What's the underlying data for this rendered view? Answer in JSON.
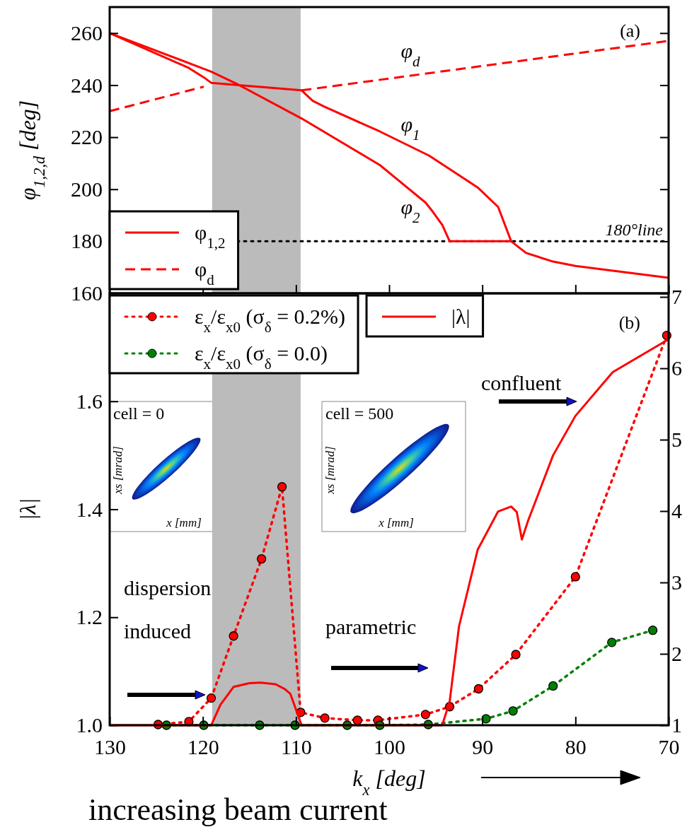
{
  "chart_data": [
    {
      "type": "line",
      "ylabel": "φ$_{1,2,d}$ [deg]",
      "xlim": [
        130,
        70
      ],
      "ylim": [
        160,
        270
      ],
      "xticks": [
        130,
        120,
        110,
        100,
        90,
        80,
        70
      ],
      "yticks": [
        160,
        180,
        200,
        220,
        240,
        260
      ],
      "tick_labels": "y",
      "legend": "bottom left",
      "series": [
        {
          "name": "φ$_{1,2}$",
          "color": "#ff0000",
          "line_style": "solid",
          "marker": "none",
          "x": [
            130,
            121.5,
            119.9,
            119.1,
            109.4,
            108.2,
            107,
            101,
            95.7,
            90.5,
            88.3,
            86.9,
            85.3,
            82.4,
            80,
            70
          ],
          "values": [
            260,
            246.6,
            243,
            240.9,
            238,
            234,
            231.8,
            222.2,
            212.9,
            200.7,
            193.2,
            180,
            175.5,
            172.2,
            170.5,
            166
          ]
        },
        {
          "color": "#ff0000",
          "line_style": "solid",
          "marker": "none",
          "x": [
            130,
            119.1,
            116.2,
            109.4,
            101,
            96.1,
            95.3,
            94.3,
            93.5,
            86.9
          ],
          "values": [
            260,
            245.2,
            240.2,
            227.2,
            209.3,
            194.9,
            191.3,
            186.3,
            180,
            180
          ]
        },
        {
          "name": "φ$_{d}$",
          "color": "#ff0000",
          "line_style": "dashed",
          "marker": "none",
          "x": [
            130,
            119.9,
            115,
            109.4,
            70
          ],
          "values": [
            230,
            239.4,
            null,
            238,
            257
          ]
        }
      ],
      "bands": [
        {
          "axis": "x",
          "from": 119,
          "to": 109.5,
          "color": "#bbbbbb"
        }
      ],
      "ref_lines": [
        {
          "axis": "y",
          "value": 180,
          "label": "180°line",
          "color": "#000000",
          "line_style": "dotted"
        }
      ],
      "annotations": [
        "(a)",
        "φ$_{d}$",
        "φ$_{1}$",
        "φ$_{2}$"
      ]
    },
    {
      "type": "line",
      "xlabel": "k$_{x}$ [deg]",
      "ylabel": "|λ|",
      "xlim": [
        130,
        70
      ],
      "ylim": [
        1.0,
        1.8
      ],
      "y2lim": [
        1,
        7.05
      ],
      "xticks": [
        130,
        120,
        110,
        100,
        90,
        80,
        70
      ],
      "yticks": [
        {
          "value": 1,
          "label": "1.0"
        },
        {
          "value": 1.2,
          "label": "1.2"
        },
        {
          "value": 1.4,
          "label": "1.4"
        },
        {
          "value": 1.6,
          "label": "1.6"
        }
      ],
      "y2ticks": [
        1,
        2,
        3,
        4,
        5,
        6,
        7
      ],
      "legend": "top left",
      "series": [
        {
          "name": "ε$_{x}$/ε$_{x0}$ (σ$_{δ}$ = 0.2%)",
          "color": "#ff0000",
          "axis": "y2",
          "line_style": "dotted",
          "marker": "circle",
          "x": [
            124.8,
            121.5,
            119.1,
            116.7,
            113.7,
            111.5,
            109.5,
            106.9,
            103.4,
            101.2,
            96.1,
            93.5,
            90.4,
            86.4,
            80,
            70.2
          ],
          "values": [
            1.01,
            1.05,
            1.38,
            2.25,
            3.33,
            4.34,
            1.18,
            1.1,
            1.07,
            1.07,
            1.15,
            1.26,
            1.51,
            1.99,
            3.08,
            6.46
          ]
        },
        {
          "name": "ε$_{x}$/ε$_{x0}$ (σ$_{δ}$ = 0.0)",
          "color": "#008000",
          "axis": "y2",
          "line_style": "dotted",
          "marker": "circle",
          "x": [
            123.9,
            119.9,
            113.9,
            110.1,
            104.5,
            101,
            95.8,
            89.6,
            86.7,
            82.4,
            76.1,
            71.7
          ],
          "values": [
            1,
            1,
            1,
            1,
            1,
            1,
            1.01,
            1.09,
            1.2,
            1.55,
            2.16,
            2.33
          ]
        },
        {
          "name": "|λ|",
          "color": "#ff0000",
          "line_style": "solid",
          "marker": "none",
          "x": [
            130,
            119.1,
            118.1,
            116.7,
            115,
            113.8,
            112.2,
            111.2,
            110.6,
            109.4,
            94.3,
            93.5,
            92.5,
            90.5,
            88.3,
            86.9,
            86.3,
            85.75,
            85.1,
            82.4,
            80,
            76,
            70
          ],
          "values": [
            1,
            1,
            1.038,
            1.071,
            1.078,
            1.079,
            1.076,
            1.067,
            1.058,
            1,
            1,
            1.044,
            1.183,
            1.325,
            1.396,
            1.405,
            1.395,
            1.344,
            1.378,
            1.5,
            1.573,
            1.654,
            1.715
          ]
        }
      ],
      "bands": [
        {
          "axis": "x",
          "from": 119,
          "to": 109.5,
          "color": "#bbbbbb"
        }
      ],
      "annotations": [
        "(b)",
        "confluent",
        "parametric",
        "dispersion",
        "induced",
        "cell = 0",
        "xs [mrad]",
        "x [mm]",
        "cell = 500",
        "xs [mrad]",
        "x [mm]",
        "increasing beam current"
      ]
    }
  ]
}
